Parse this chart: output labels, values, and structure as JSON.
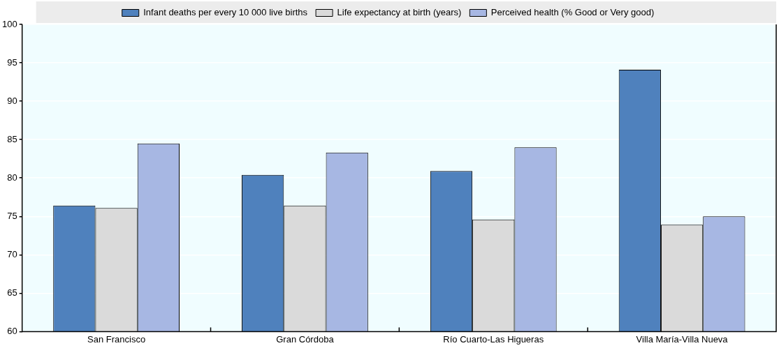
{
  "chart_data": {
    "type": "bar",
    "categories": [
      "San Francisco",
      "Gran Córdoba",
      "Río Cuarto-Las Higueras",
      "Villa María-Villa Nueva"
    ],
    "series": [
      {
        "name": "Infant deaths per every 10 000 live births",
        "color": "#4f81bd",
        "values": [
          76.4,
          80.4,
          80.9,
          94.1
        ]
      },
      {
        "name": "Life expectancy at birth (years)",
        "color": "#dadada",
        "values": [
          76.1,
          76.4,
          74.6,
          73.9
        ]
      },
      {
        "name": "Perceived health (% Good or Very good)",
        "color": "#a7b7e3",
        "values": [
          84.5,
          83.3,
          84.0,
          75.0
        ]
      }
    ],
    "ylim": [
      60,
      100
    ],
    "yticks": [
      60,
      65,
      70,
      75,
      80,
      85,
      90,
      95,
      100
    ],
    "grid": "y",
    "legend": "top"
  }
}
